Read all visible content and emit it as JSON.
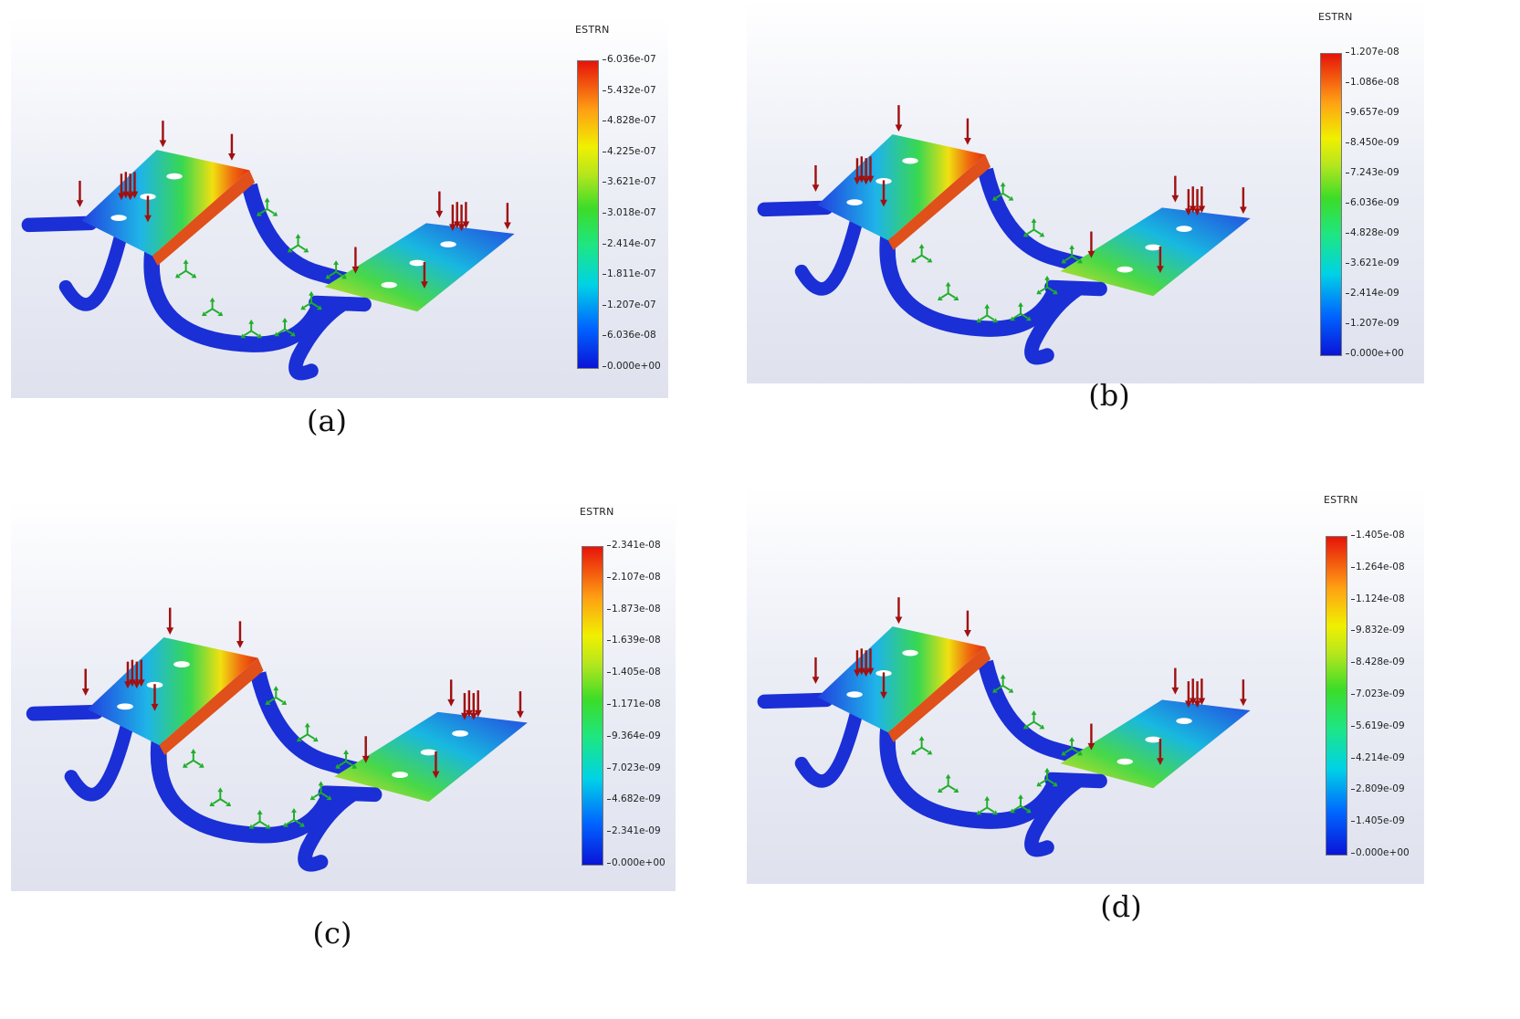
{
  "panels": [
    {
      "caption": "(a)",
      "legend_title": "ESTRN",
      "ticks": [
        "6.036e-07",
        "5.432e-07",
        "4.828e-07",
        "4.225e-07",
        "3.621e-07",
        "3.018e-07",
        "2.414e-07",
        "1.811e-07",
        "1.207e-07",
        "6.036e-08",
        "0.000e+00"
      ]
    },
    {
      "caption": "(b)",
      "legend_title": "ESTRN",
      "ticks": [
        "1.207e-08",
        "1.086e-08",
        "9.657e-09",
        "8.450e-09",
        "7.243e-09",
        "6.036e-09",
        "4.828e-09",
        "3.621e-09",
        "2.414e-09",
        "1.207e-09",
        "0.000e+00"
      ]
    },
    {
      "caption": "(c)",
      "legend_title": "ESTRN",
      "ticks": [
        "2.341e-08",
        "2.107e-08",
        "1.873e-08",
        "1.639e-08",
        "1.405e-08",
        "1.171e-08",
        "9.364e-09",
        "7.023e-09",
        "4.682e-09",
        "2.341e-09",
        "0.000e+00"
      ]
    },
    {
      "caption": "(d)",
      "legend_title": "ESTRN",
      "ticks": [
        "1.405e-08",
        "1.264e-08",
        "1.124e-08",
        "9.832e-09",
        "8.428e-09",
        "7.023e-09",
        "5.619e-09",
        "4.214e-09",
        "2.809e-09",
        "1.405e-09",
        "0.000e+00"
      ]
    }
  ],
  "colors": {
    "member_blue": "#1a2fd6",
    "load_arrow": "#a01010",
    "fixture": "#1fae2a"
  }
}
